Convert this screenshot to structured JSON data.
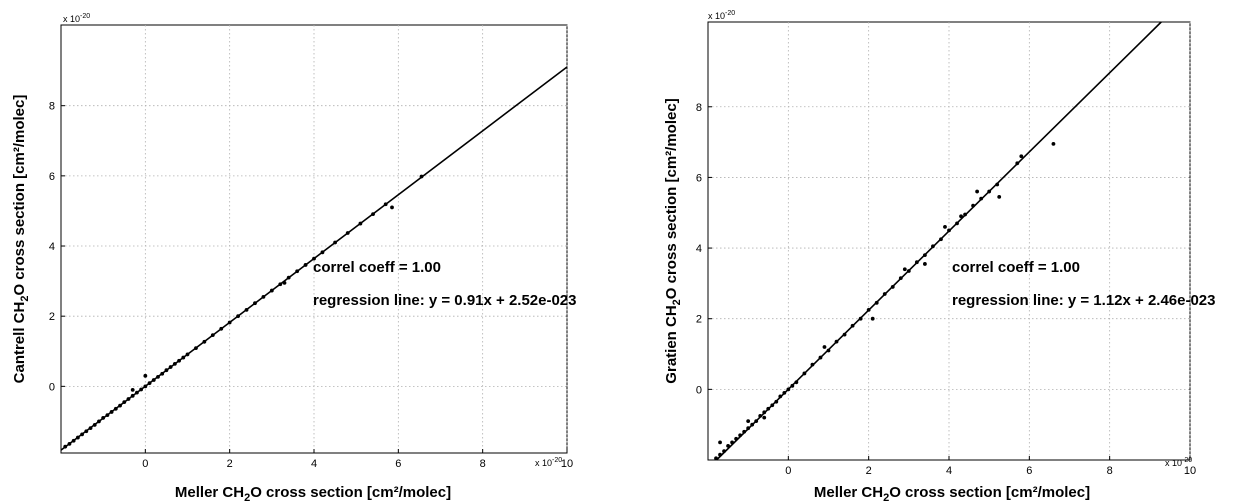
{
  "chart_data": [
    {
      "type": "scatter",
      "xlabel": "Meller CH₂O cross section [cm²/molec]",
      "ylabel": "Cantrell CH₂O cross section [cm²/molec]",
      "x_multiplier_label": "x 10",
      "y_multiplier_label": "x 10",
      "exponent": "-20",
      "xlim": [
        -2,
        10
      ],
      "ylim": [
        -1.9,
        10.3
      ],
      "xticks": [
        "0",
        "2",
        "4",
        "6",
        "8",
        "10"
      ],
      "yticks": [
        "0",
        "2",
        "4",
        "6",
        "8"
      ],
      "grid": true,
      "annotations": [
        "correl coeff = 1.00",
        "regression line: y = 0.91x + 2.52e-023"
      ],
      "regression": {
        "slope": 0.91,
        "intercept": 0.0025
      },
      "series": [
        {
          "x": [
            -1.9,
            -1.8,
            -1.7,
            -1.6,
            -1.5,
            -1.4,
            -1.3,
            -1.2,
            -1.1,
            -1.0,
            -0.9,
            -0.8,
            -0.7,
            -0.6,
            -0.5,
            -0.4,
            -0.3,
            -0.2,
            -0.1,
            0.0,
            0.1,
            0.2,
            0.3,
            0.4,
            0.5,
            0.6,
            0.7,
            0.8,
            0.9,
            1.0,
            1.2,
            1.4,
            1.6,
            1.8,
            2.0,
            2.2,
            2.4,
            2.6,
            2.8,
            3.0,
            3.2,
            3.4,
            3.6,
            3.8,
            4.0,
            4.2,
            4.5,
            4.8,
            5.1,
            5.4,
            5.7,
            5.85,
            6.55,
            0.0,
            -0.3,
            3.3
          ],
          "y": [
            -1.72,
            -1.64,
            -1.55,
            -1.46,
            -1.37,
            -1.28,
            -1.19,
            -1.1,
            -1.0,
            -0.9,
            -0.82,
            -0.73,
            -0.64,
            -0.55,
            -0.45,
            -0.36,
            -0.27,
            -0.18,
            -0.09,
            0.0,
            0.09,
            0.18,
            0.27,
            0.36,
            0.46,
            0.55,
            0.64,
            0.73,
            0.82,
            0.91,
            1.09,
            1.27,
            1.46,
            1.64,
            1.82,
            2.0,
            2.18,
            2.37,
            2.55,
            2.73,
            2.91,
            3.1,
            3.28,
            3.46,
            3.64,
            3.82,
            4.1,
            4.37,
            4.64,
            4.91,
            5.19,
            5.1,
            5.98,
            0.3,
            -0.1,
            2.95
          ]
        }
      ]
    },
    {
      "type": "scatter",
      "xlabel": "Meller CH₂O cross section [cm²/molec]",
      "ylabel": "Gratien  CH₂O cross section [cm²/molec]",
      "x_multiplier_label": "x 10",
      "y_multiplier_label": "x 10",
      "exponent": "-20",
      "xlim": [
        -2,
        10
      ],
      "ylim": [
        -2.0,
        10.4
      ],
      "xticks": [
        "0",
        "2",
        "4",
        "6",
        "8",
        "10"
      ],
      "yticks": [
        "0",
        "2",
        "4",
        "6",
        "8"
      ],
      "grid": true,
      "annotations": [
        "correl coeff = 1.00",
        "regression line: y = 1.12x + 2.46e-023"
      ],
      "regression": {
        "slope": 1.12,
        "intercept": 0.0025
      },
      "series": [
        {
          "x": [
            -1.8,
            -1.7,
            -1.6,
            -1.5,
            -1.4,
            -1.3,
            -1.2,
            -1.1,
            -1.0,
            -0.9,
            -0.8,
            -0.7,
            -0.6,
            -0.5,
            -0.4,
            -0.3,
            -0.2,
            -0.1,
            0.0,
            0.1,
            0.2,
            0.4,
            0.6,
            0.8,
            1.0,
            1.2,
            1.4,
            1.6,
            1.8,
            2.0,
            2.2,
            2.4,
            2.6,
            2.8,
            3.0,
            3.2,
            3.4,
            3.6,
            3.8,
            4.0,
            4.2,
            4.4,
            4.6,
            4.8,
            5.0,
            5.2,
            5.7,
            5.8,
            6.6,
            -1.7,
            -1.0,
            -0.6,
            0.9,
            2.1,
            2.9,
            3.4,
            3.9,
            4.3,
            4.7,
            5.25
          ],
          "y": [
            -1.95,
            -1.85,
            -1.75,
            -1.6,
            -1.5,
            -1.4,
            -1.3,
            -1.2,
            -1.1,
            -1.0,
            -0.9,
            -0.75,
            -0.65,
            -0.55,
            -0.45,
            -0.35,
            -0.2,
            -0.1,
            0.0,
            0.1,
            0.2,
            0.45,
            0.7,
            0.9,
            1.1,
            1.35,
            1.55,
            1.8,
            2.0,
            2.25,
            2.45,
            2.7,
            2.9,
            3.15,
            3.35,
            3.6,
            3.8,
            4.05,
            4.25,
            4.5,
            4.7,
            4.95,
            5.2,
            5.4,
            5.6,
            5.8,
            6.4,
            6.6,
            6.95,
            -1.5,
            -0.9,
            -0.8,
            1.2,
            2.0,
            3.4,
            3.55,
            4.6,
            4.9,
            5.6,
            5.45
          ]
        }
      ]
    }
  ]
}
